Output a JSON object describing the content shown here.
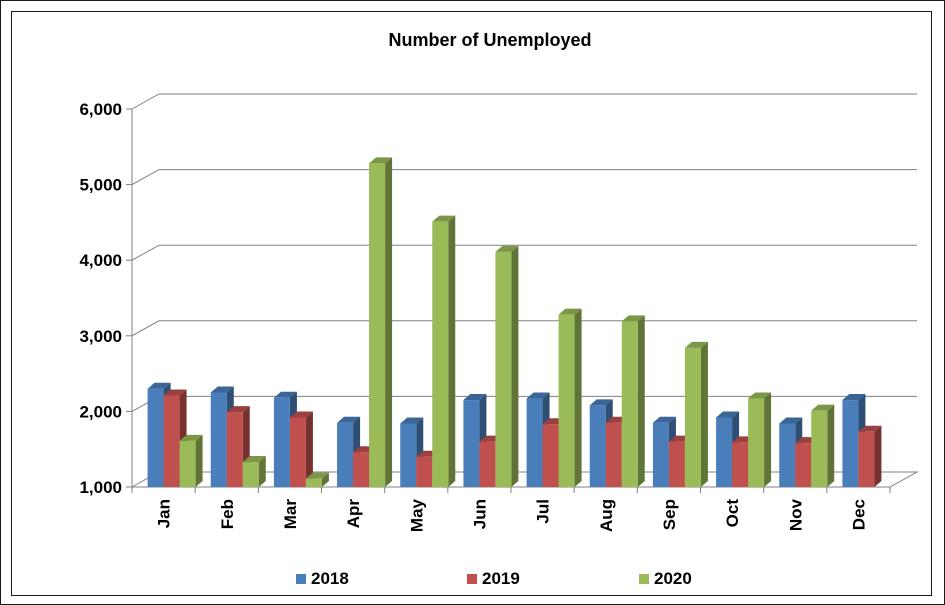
{
  "chart_data": {
    "type": "bar",
    "title": "Number of Unemployed",
    "xlabel": "",
    "ylabel": "",
    "ylim": [
      1000,
      6000
    ],
    "yticks": [
      "1,000",
      "2,000",
      "3,000",
      "4,000",
      "5,000",
      "6,000"
    ],
    "categories": [
      "Jan",
      "Feb",
      "Mar",
      "Apr",
      "May",
      "Jun",
      "Jul",
      "Aug",
      "Sep",
      "Oct",
      "Nov",
      "Dec"
    ],
    "series": [
      {
        "name": "2018",
        "color": "#4a7ebb",
        "values": [
          2300,
          2250,
          2180,
          1850,
          1840,
          2150,
          2170,
          2080,
          1850,
          1920,
          1840,
          2150
        ]
      },
      {
        "name": "2019",
        "color": "#c0504d",
        "values": [
          2210,
          1990,
          1920,
          1460,
          1400,
          1600,
          1830,
          1850,
          1600,
          1590,
          1580,
          1730
        ]
      },
      {
        "name": "2020",
        "color": "#9bbb59",
        "values": [
          1610,
          1330,
          1110,
          5280,
          4510,
          4110,
          3280,
          3190,
          2840,
          2170,
          2010,
          null
        ]
      }
    ],
    "grid": true,
    "legend": "bottom",
    "style": "3d-column"
  }
}
